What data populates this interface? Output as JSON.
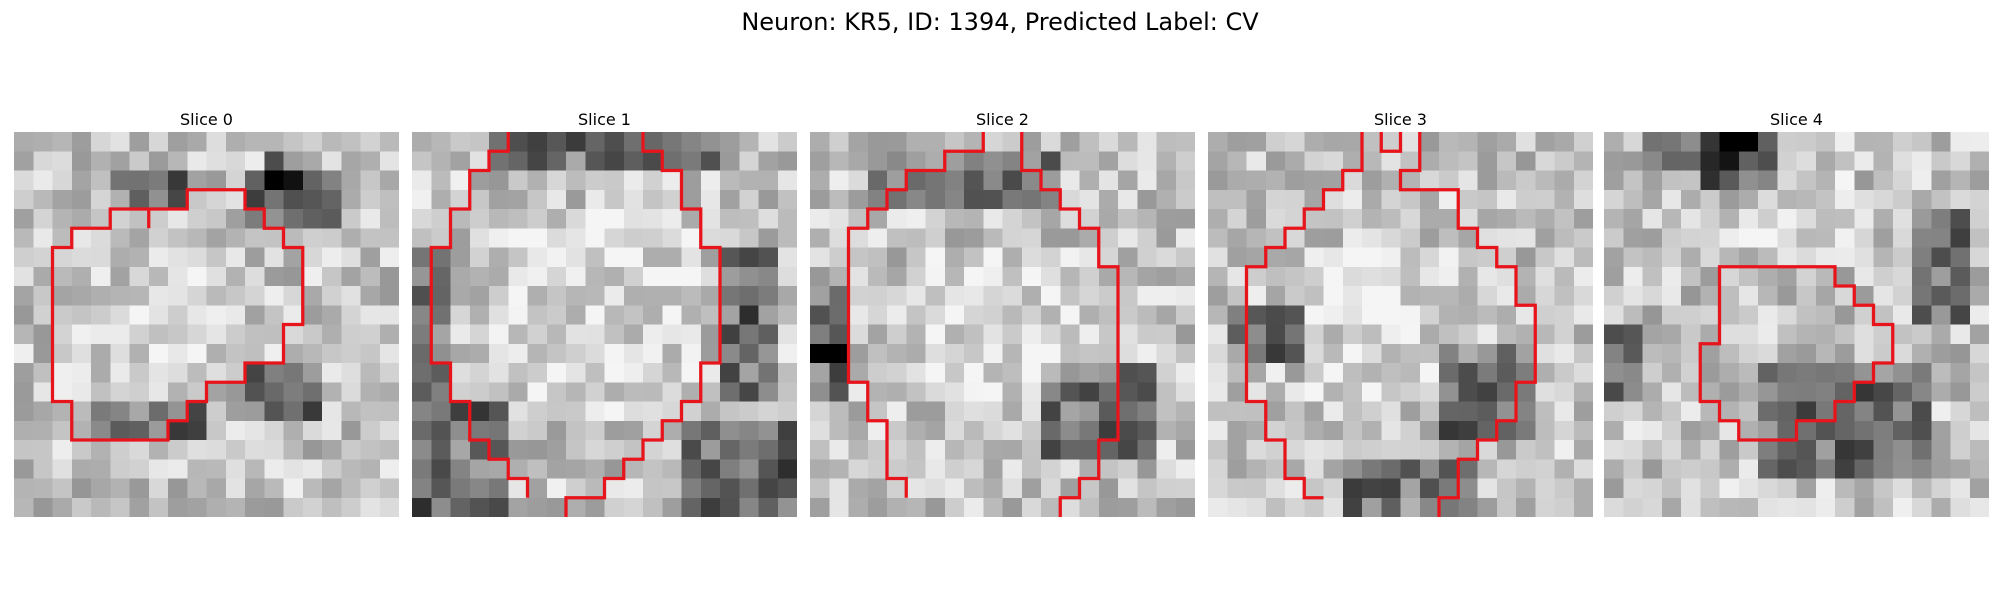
{
  "figure": {
    "title": "Neuron: KR5, ID: 1394, Predicted Label: CV"
  },
  "slices": [
    {
      "title": "Slice 0",
      "seed": 11,
      "contour": [
        [
          7,
          5
        ],
        [
          7,
          4
        ],
        [
          9,
          4
        ],
        [
          9,
          3
        ],
        [
          12,
          3
        ],
        [
          12,
          4
        ],
        [
          13,
          4
        ],
        [
          13,
          5
        ],
        [
          14,
          5
        ],
        [
          14,
          6
        ],
        [
          15,
          6
        ],
        [
          15,
          8
        ],
        [
          15,
          10
        ],
        [
          14,
          10
        ],
        [
          14,
          12
        ],
        [
          12,
          12
        ],
        [
          12,
          13
        ],
        [
          10,
          13
        ],
        [
          10,
          14
        ],
        [
          9,
          14
        ],
        [
          9,
          15
        ],
        [
          8,
          15
        ],
        [
          8,
          16
        ],
        [
          4,
          16
        ],
        [
          3,
          16
        ],
        [
          3,
          14
        ],
        [
          2,
          14
        ],
        [
          2,
          13
        ],
        [
          2,
          6
        ],
        [
          3,
          6
        ],
        [
          3,
          5
        ],
        [
          5,
          5
        ],
        [
          5,
          4
        ],
        [
          7,
          4
        ]
      ],
      "dark": [
        [
          5,
          2,
          4,
          2
        ],
        [
          12,
          2,
          5,
          3
        ],
        [
          13,
          1,
          2,
          2
        ],
        [
          4,
          14,
          6,
          2
        ],
        [
          12,
          12,
          4,
          3
        ]
      ],
      "light": [
        [
          6,
          6,
          6,
          6
        ]
      ]
    },
    {
      "title": "Slice 1",
      "seed": 23,
      "contour": [
        [
          5,
          0
        ],
        [
          5,
          1
        ],
        [
          4,
          1
        ],
        [
          4,
          2
        ],
        [
          3,
          2
        ],
        [
          3,
          4
        ],
        [
          2,
          4
        ],
        [
          2,
          6
        ],
        [
          1,
          6
        ],
        [
          1,
          9
        ],
        [
          1,
          12
        ],
        [
          2,
          12
        ],
        [
          2,
          14
        ],
        [
          3,
          14
        ],
        [
          3,
          16
        ],
        [
          4,
          16
        ],
        [
          4,
          17
        ],
        [
          5,
          17
        ],
        [
          5,
          18
        ],
        [
          6,
          18
        ],
        [
          6,
          19
        ]
      ],
      "contour2": [
        [
          12,
          0
        ],
        [
          12,
          1
        ],
        [
          13,
          1
        ],
        [
          13,
          2
        ],
        [
          14,
          2
        ],
        [
          14,
          4
        ],
        [
          15,
          4
        ],
        [
          15,
          6
        ],
        [
          16,
          6
        ],
        [
          16,
          9
        ],
        [
          16,
          12
        ],
        [
          15,
          12
        ],
        [
          15,
          14
        ],
        [
          14,
          14
        ],
        [
          14,
          15
        ],
        [
          13,
          15
        ],
        [
          13,
          16
        ],
        [
          12,
          16
        ],
        [
          12,
          17
        ],
        [
          11,
          17
        ],
        [
          11,
          18
        ],
        [
          10,
          18
        ],
        [
          10,
          19
        ],
        [
          8,
          19
        ],
        [
          8,
          20
        ]
      ],
      "dark": [
        [
          4,
          0,
          12,
          2
        ],
        [
          0,
          14,
          5,
          6
        ],
        [
          14,
          15,
          6,
          5
        ],
        [
          16,
          6,
          3,
          8
        ],
        [
          0,
          6,
          2,
          8
        ]
      ],
      "light": [
        [
          4,
          4,
          11,
          11
        ]
      ]
    },
    {
      "title": "Slice 2",
      "seed": 37,
      "contour": [
        [
          9,
          0
        ],
        [
          9,
          1
        ],
        [
          7,
          1
        ],
        [
          7,
          2
        ],
        [
          5,
          2
        ],
        [
          5,
          3
        ],
        [
          4,
          3
        ],
        [
          4,
          4
        ],
        [
          3,
          4
        ],
        [
          3,
          5
        ],
        [
          2,
          5
        ],
        [
          2,
          7
        ],
        [
          2,
          13
        ],
        [
          3,
          13
        ],
        [
          3,
          15
        ],
        [
          4,
          15
        ],
        [
          4,
          18
        ],
        [
          5,
          18
        ],
        [
          5,
          19
        ]
      ],
      "contour2": [
        [
          11,
          0
        ],
        [
          11,
          2
        ],
        [
          12,
          2
        ],
        [
          12,
          3
        ],
        [
          13,
          3
        ],
        [
          13,
          4
        ],
        [
          14,
          4
        ],
        [
          14,
          5
        ],
        [
          15,
          5
        ],
        [
          15,
          7
        ],
        [
          16,
          7
        ],
        [
          16,
          10
        ],
        [
          16,
          16
        ],
        [
          15,
          16
        ],
        [
          15,
          18
        ],
        [
          14,
          18
        ],
        [
          14,
          19
        ],
        [
          13,
          19
        ],
        [
          13,
          20
        ]
      ],
      "dark": [
        [
          0,
          8,
          2,
          4
        ],
        [
          0,
          11,
          2,
          3
        ],
        [
          3,
          1,
          10,
          3
        ],
        [
          12,
          12,
          6,
          5
        ]
      ],
      "light": [
        [
          5,
          6,
          9,
          8
        ]
      ]
    },
    {
      "title": "Slice 3",
      "seed": 53,
      "contour": [
        [
          9,
          0
        ],
        [
          9,
          1
        ],
        [
          10,
          1
        ],
        [
          10,
          0
        ]
      ],
      "contour2": [
        [
          8,
          0
        ],
        [
          8,
          2
        ],
        [
          7,
          2
        ],
        [
          7,
          3
        ],
        [
          6,
          3
        ],
        [
          6,
          4
        ],
        [
          5,
          4
        ],
        [
          5,
          5
        ],
        [
          4,
          5
        ],
        [
          4,
          6
        ],
        [
          3,
          6
        ],
        [
          3,
          7
        ],
        [
          2,
          7
        ],
        [
          2,
          10
        ],
        [
          2,
          14
        ],
        [
          3,
          14
        ],
        [
          3,
          16
        ],
        [
          4,
          16
        ],
        [
          4,
          18
        ],
        [
          5,
          18
        ],
        [
          5,
          19
        ],
        [
          6,
          19
        ]
      ],
      "contour3": [
        [
          11,
          0
        ],
        [
          11,
          2
        ],
        [
          10,
          2
        ],
        [
          10,
          3
        ],
        [
          13,
          3
        ],
        [
          13,
          5
        ],
        [
          14,
          5
        ],
        [
          14,
          6
        ],
        [
          15,
          6
        ],
        [
          15,
          7
        ],
        [
          16,
          7
        ],
        [
          16,
          9
        ],
        [
          17,
          9
        ],
        [
          17,
          11
        ],
        [
          17,
          13
        ],
        [
          16,
          13
        ],
        [
          16,
          15
        ],
        [
          15,
          15
        ],
        [
          15,
          16
        ],
        [
          14,
          16
        ],
        [
          14,
          17
        ],
        [
          13,
          17
        ],
        [
          13,
          19
        ],
        [
          12,
          19
        ],
        [
          12,
          20
        ]
      ],
      "dark": [
        [
          1,
          9,
          4,
          3
        ],
        [
          7,
          17,
          7,
          3
        ],
        [
          12,
          11,
          5,
          5
        ]
      ],
      "light": [
        [
          5,
          6,
          9,
          8
        ]
      ]
    },
    {
      "title": "Slice 4",
      "seed": 71,
      "contour": [
        [
          6,
          8
        ],
        [
          6,
          7
        ],
        [
          8,
          7
        ],
        [
          9,
          7
        ],
        [
          12,
          7
        ],
        [
          12,
          8
        ],
        [
          13,
          8
        ],
        [
          13,
          9
        ],
        [
          14,
          9
        ],
        [
          14,
          10
        ],
        [
          15,
          10
        ],
        [
          15,
          12
        ],
        [
          14,
          12
        ],
        [
          14,
          13
        ],
        [
          13,
          13
        ],
        [
          13,
          14
        ],
        [
          12,
          14
        ],
        [
          12,
          15
        ],
        [
          11,
          15
        ],
        [
          10,
          15
        ],
        [
          10,
          16
        ],
        [
          8,
          16
        ],
        [
          7,
          16
        ],
        [
          7,
          15
        ],
        [
          6,
          15
        ],
        [
          6,
          14
        ],
        [
          5,
          14
        ],
        [
          5,
          12
        ],
        [
          5,
          11
        ],
        [
          6,
          11
        ],
        [
          6,
          8
        ]
      ],
      "dark": [
        [
          2,
          0,
          6,
          2
        ],
        [
          5,
          0,
          4,
          3
        ],
        [
          8,
          12,
          9,
          6
        ],
        [
          16,
          4,
          3,
          6
        ],
        [
          0,
          10,
          2,
          4
        ]
      ],
      "light": [
        [
          7,
          2,
          6,
          4
        ]
      ]
    }
  ]
}
